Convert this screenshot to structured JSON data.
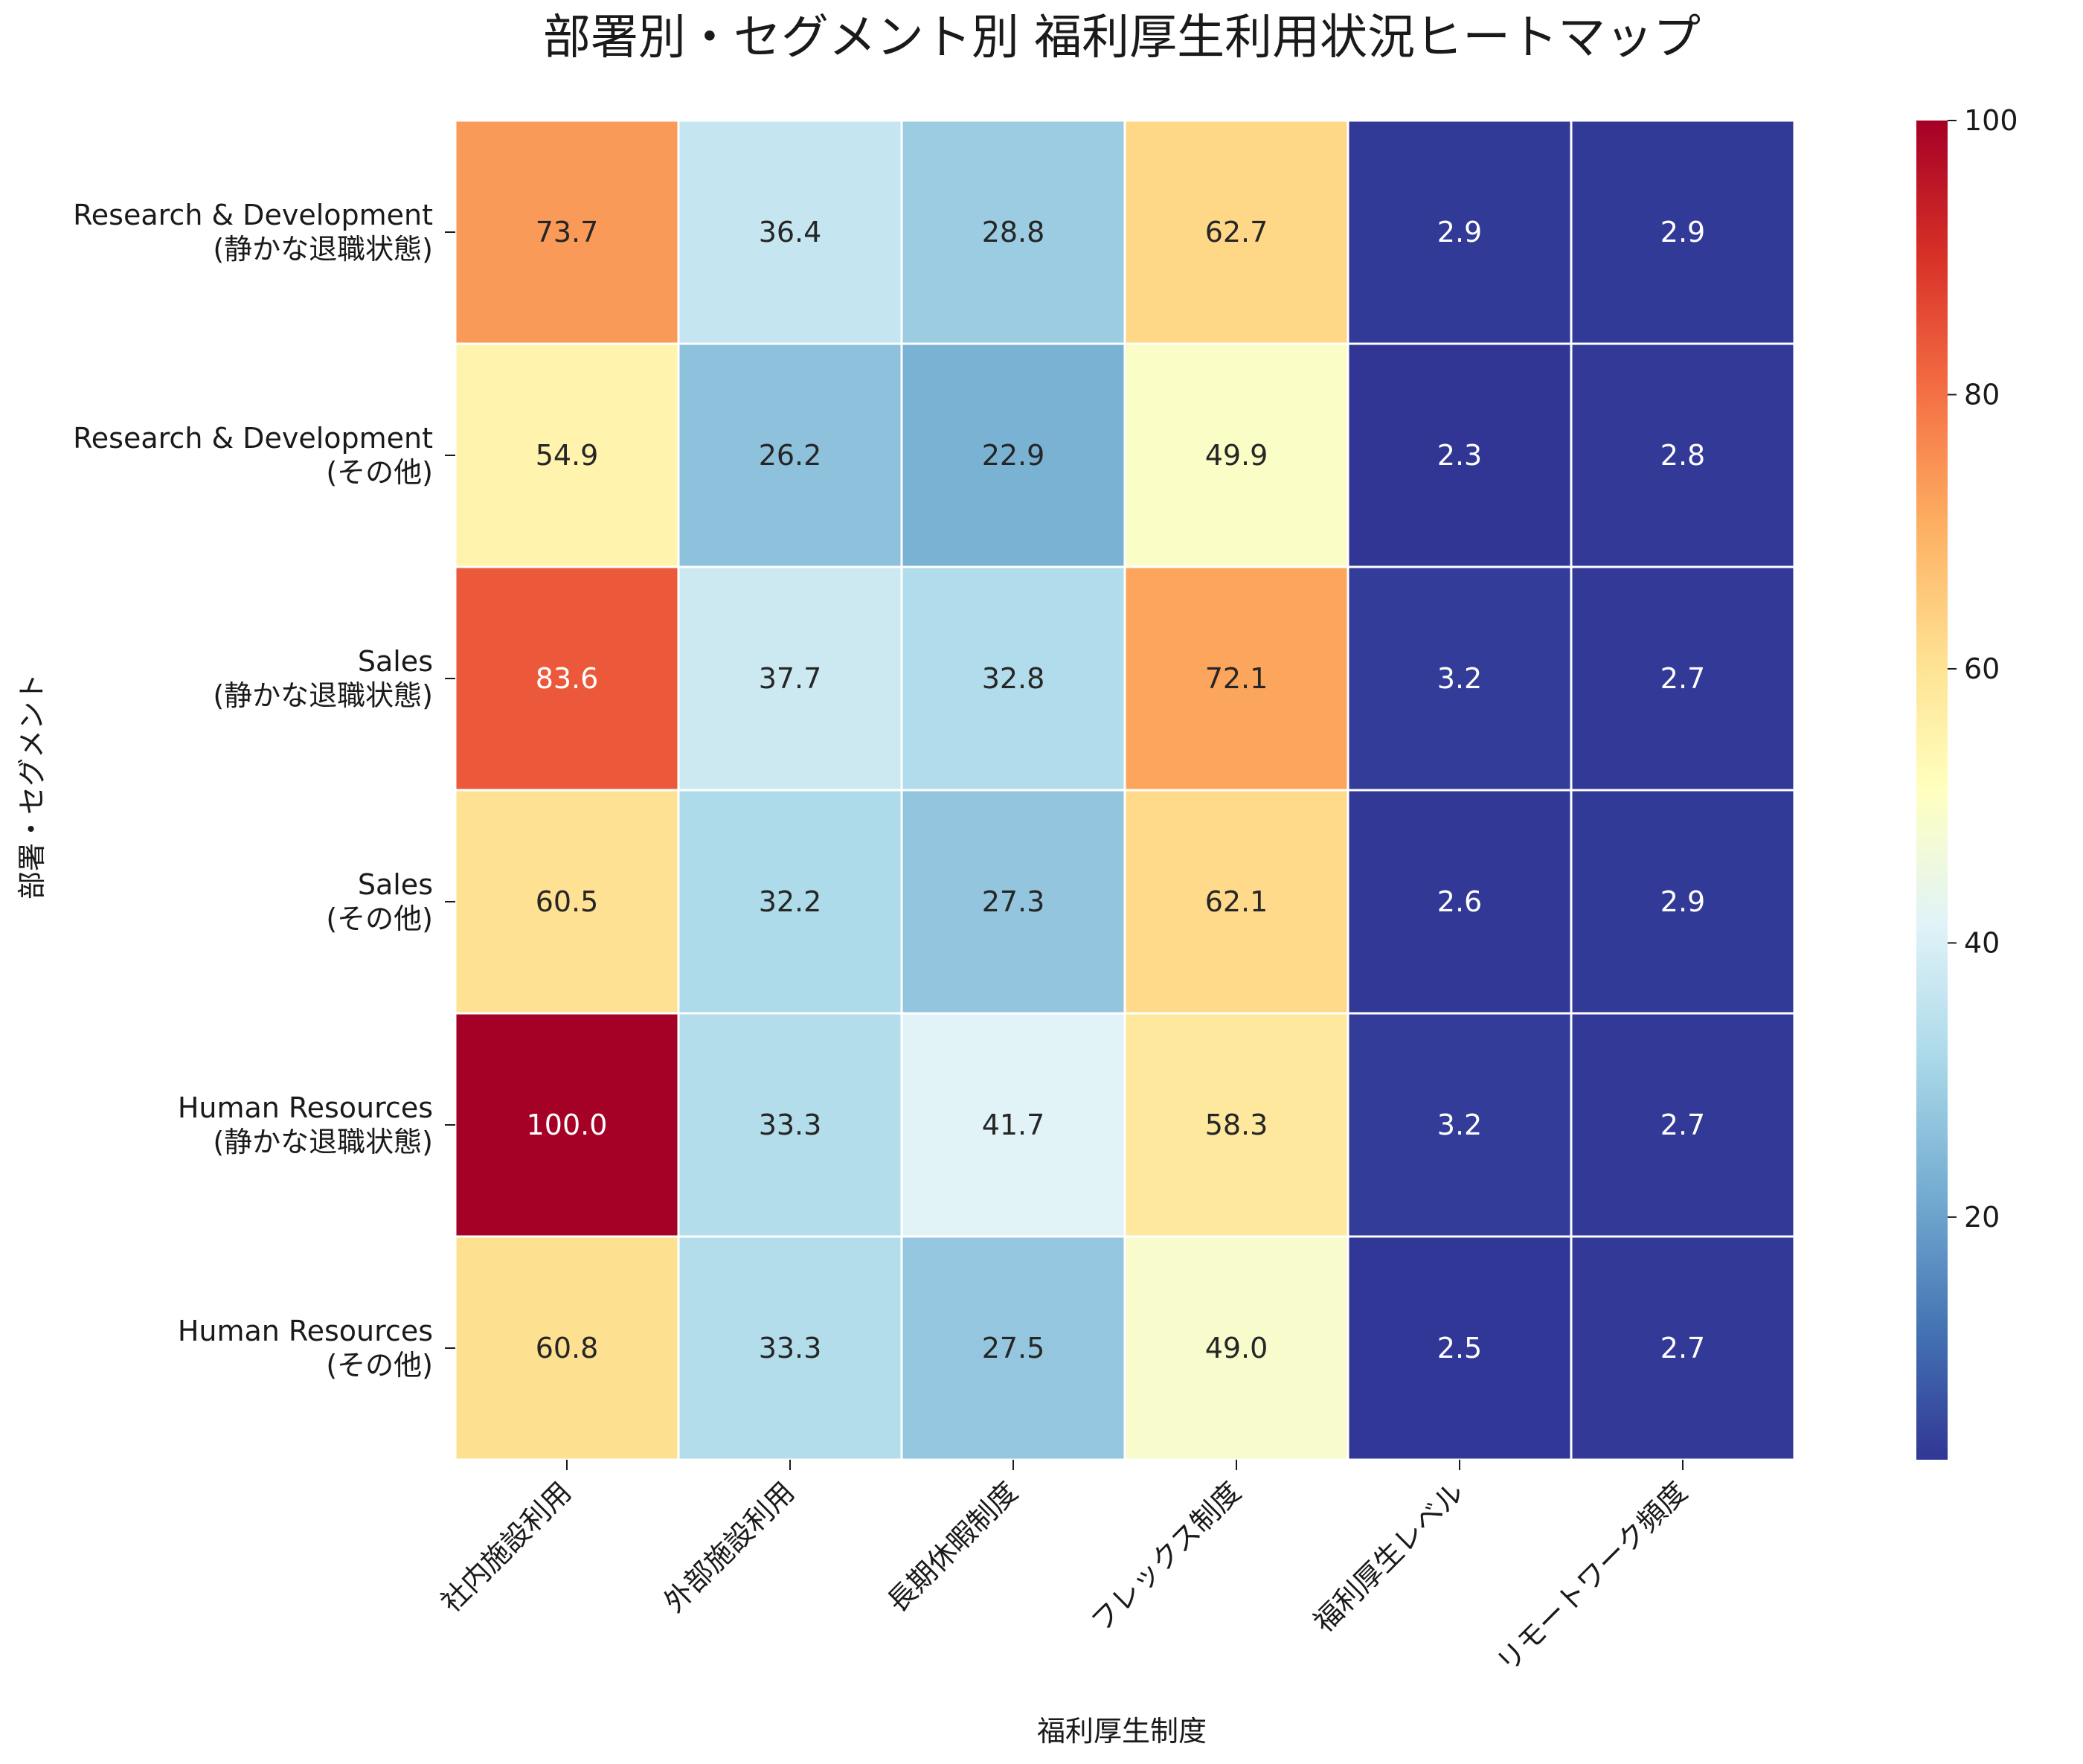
{
  "chart_data": {
    "type": "heatmap",
    "title": "部署別・セグメント別 福利厚生利用状況ヒートマップ",
    "xlabel": "福利厚生制度",
    "ylabel": "部署・セグメント",
    "columns": [
      "社内施設利用",
      "外部施設利用",
      "長期休暇制度",
      "フレックス制度",
      "福利厚生レベル",
      "リモートワーク頻度"
    ],
    "rows": [
      {
        "department": "Research & Development",
        "segment": "(静かな退職状態)"
      },
      {
        "department": "Research & Development",
        "segment": "(その他)"
      },
      {
        "department": "Sales",
        "segment": "(静かな退職状態)"
      },
      {
        "department": "Sales",
        "segment": "(その他)"
      },
      {
        "department": "Human Resources",
        "segment": "(静かな退職状態)"
      },
      {
        "department": "Human Resources",
        "segment": "(その他)"
      }
    ],
    "values": [
      [
        73.7,
        36.4,
        28.8,
        62.7,
        2.9,
        2.9
      ],
      [
        54.9,
        26.2,
        22.9,
        49.9,
        2.3,
        2.8
      ],
      [
        83.6,
        37.7,
        32.8,
        72.1,
        3.2,
        2.7
      ],
      [
        60.5,
        32.2,
        27.3,
        62.1,
        2.6,
        2.9
      ],
      [
        100.0,
        33.3,
        41.7,
        58.3,
        3.2,
        2.7
      ],
      [
        60.8,
        33.3,
        27.5,
        49.0,
        2.5,
        2.7
      ]
    ],
    "colormap": "RdYlBu_r",
    "vmin": 2.3,
    "vmax": 100.0,
    "colorbar_ticks": [
      20,
      40,
      60,
      80,
      100
    ],
    "colorbar_position": "right",
    "value_format": "0.1f"
  }
}
